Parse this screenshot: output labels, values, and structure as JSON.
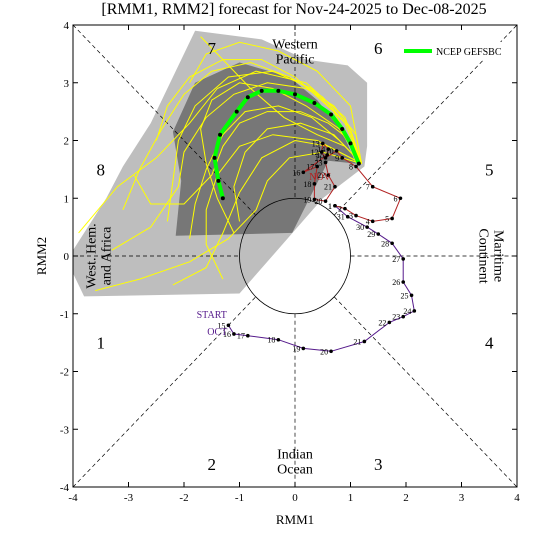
{
  "chart_data": {
    "type": "line",
    "title": "[RMM1, RMM2] forecast for Nov-24-2025 to Dec-08-2025",
    "xlabel": "RMM1",
    "ylabel": "RMM2",
    "xlim": [
      -4,
      4
    ],
    "ylim": [
      -4,
      4
    ],
    "x_ticks": [
      "-4",
      "-3",
      "-2",
      "-1",
      "0",
      "1",
      "2",
      "3",
      "4"
    ],
    "y_ticks": [
      "-4",
      "-3",
      "-2",
      "-1",
      "0",
      "1",
      "2",
      "3",
      "4"
    ],
    "grid": false,
    "legend": {
      "position": "top-right",
      "label": "NCEP GEFSBC",
      "color": "#00ff00"
    },
    "colors": {
      "oct_track": "#551a8b",
      "nov_track": "#b22222",
      "ensemble_members": "#ffff00",
      "ensemble_mean": "#00ff00",
      "spread_outer": "#bebebe",
      "spread_inner": "#777777",
      "points": "#000000"
    },
    "phase_numbers": [
      {
        "label": "1",
        "x": -3.5,
        "y": -1.5
      },
      {
        "label": "2",
        "x": -1.5,
        "y": -3.6
      },
      {
        "label": "3",
        "x": 1.5,
        "y": -3.6
      },
      {
        "label": "4",
        "x": 3.5,
        "y": -1.5
      },
      {
        "label": "5",
        "x": 3.5,
        "y": 1.5
      },
      {
        "label": "6",
        "x": 1.5,
        "y": 3.6
      },
      {
        "label": "7",
        "x": -1.5,
        "y": 3.6
      },
      {
        "label": "8",
        "x": -3.5,
        "y": 1.5
      }
    ],
    "regions": [
      {
        "lines": [
          "Western",
          "Pacific"
        ],
        "x": 0,
        "y": 3.55,
        "rotate": 0
      },
      {
        "lines": [
          "Indian",
          "Ocean"
        ],
        "x": 0,
        "y": -3.55,
        "rotate": 0
      },
      {
        "lines": [
          "West. Hem.",
          "and Africa"
        ],
        "x": -3.55,
        "y": 0,
        "rotate": -90
      },
      {
        "lines": [
          "Maritime",
          "Continent"
        ],
        "x": 3.55,
        "y": 0,
        "rotate": 90
      }
    ],
    "annotations": [
      {
        "text": "START",
        "x": -1.5,
        "y": -1.07,
        "color": "#551a8b"
      },
      {
        "text": "OCT",
        "x": -1.4,
        "y": -1.37,
        "color": "#551a8b"
      },
      {
        "text": "NOV",
        "x": 0.45,
        "y": 1.32,
        "color": "#b22222"
      }
    ],
    "oct_track": {
      "name": "OCT",
      "points": [
        {
          "label": "15",
          "x": -1.2,
          "y": -1.2
        },
        {
          "label": "16",
          "x": -1.1,
          "y": -1.35
        },
        {
          "label": "17",
          "x": -0.85,
          "y": -1.38
        },
        {
          "label": "18",
          "x": -0.3,
          "y": -1.45
        },
        {
          "label": "19",
          "x": 0.15,
          "y": -1.6
        },
        {
          "label": "20",
          "x": 0.65,
          "y": -1.65
        },
        {
          "label": "21",
          "x": 1.25,
          "y": -1.48
        },
        {
          "label": "22",
          "x": 1.7,
          "y": -1.15
        },
        {
          "label": "23",
          "x": 1.95,
          "y": -1.05
        },
        {
          "label": "24",
          "x": 2.15,
          "y": -0.95
        },
        {
          "label": "25",
          "x": 2.1,
          "y": -0.68
        },
        {
          "label": "26",
          "x": 1.95,
          "y": -0.45
        },
        {
          "label": "27",
          "x": 1.95,
          "y": -0.05
        },
        {
          "label": "28",
          "x": 1.75,
          "y": 0.22
        },
        {
          "label": "29",
          "x": 1.5,
          "y": 0.38
        },
        {
          "label": "30",
          "x": 1.3,
          "y": 0.5
        },
        {
          "label": "31",
          "x": 0.95,
          "y": 0.68
        },
        {
          "label": "1",
          "x": 0.72,
          "y": 0.87
        }
      ]
    },
    "nov_track": {
      "name": "NOV",
      "points": [
        {
          "label": "1",
          "x": 0.72,
          "y": 0.87
        },
        {
          "label": "2",
          "x": 0.9,
          "y": 0.82
        },
        {
          "label": "3",
          "x": 1.1,
          "y": 0.7
        },
        {
          "label": "4",
          "x": 1.4,
          "y": 0.6
        },
        {
          "label": "5",
          "x": 1.75,
          "y": 0.65
        },
        {
          "label": "6",
          "x": 1.9,
          "y": 1.0
        },
        {
          "label": "7",
          "x": 1.4,
          "y": 1.2
        },
        {
          "label": "8",
          "x": 1.1,
          "y": 1.55
        },
        {
          "label": "9",
          "x": 0.85,
          "y": 1.7
        },
        {
          "label": "10",
          "x": 0.75,
          "y": 1.82
        },
        {
          "label": "11",
          "x": 0.55,
          "y": 1.7
        },
        {
          "label": "12",
          "x": 0.48,
          "y": 1.8
        },
        {
          "label": "13",
          "x": 0.5,
          "y": 1.95
        },
        {
          "label": "14",
          "x": 0.6,
          "y": 1.85
        },
        {
          "label": "15",
          "x": 0.58,
          "y": 1.75
        },
        {
          "label": "16",
          "x": 0.15,
          "y": 1.45
        },
        {
          "label": "17",
          "x": 0.4,
          "y": 1.55
        },
        {
          "label": "18",
          "x": 0.35,
          "y": 1.25
        },
        {
          "label": "19",
          "x": 0.35,
          "y": 0.98
        },
        {
          "label": "20",
          "x": 0.55,
          "y": 0.95
        },
        {
          "label": "21",
          "x": 0.72,
          "y": 1.2
        },
        {
          "label": "22",
          "x": 0.6,
          "y": 1.4
        },
        {
          "label": "23",
          "x": 0.55,
          "y": 1.62
        }
      ]
    },
    "ensemble_mean": {
      "name": "NCEP GEFSBC",
      "points": [
        {
          "x": 1.15,
          "y": 1.6
        },
        {
          "x": 1.0,
          "y": 1.95
        },
        {
          "x": 0.85,
          "y": 2.2
        },
        {
          "x": 0.65,
          "y": 2.45
        },
        {
          "x": 0.35,
          "y": 2.65
        },
        {
          "x": 0.0,
          "y": 2.8
        },
        {
          "x": -0.3,
          "y": 2.86
        },
        {
          "x": -0.6,
          "y": 2.86
        },
        {
          "x": -0.85,
          "y": 2.75
        },
        {
          "x": -1.05,
          "y": 2.5
        },
        {
          "x": -1.35,
          "y": 2.1
        },
        {
          "x": -1.45,
          "y": 1.7
        },
        {
          "x": -1.38,
          "y": 1.3
        },
        {
          "x": -1.3,
          "y": 1.0
        }
      ]
    },
    "spread_outer_polygon": [
      {
        "x": -4.0,
        "y": 0.1
      },
      {
        "x": -3.4,
        "y": 1.0
      },
      {
        "x": -3.1,
        "y": 1.55
      },
      {
        "x": -2.6,
        "y": 2.3
      },
      {
        "x": -2.2,
        "y": 3.1
      },
      {
        "x": -1.8,
        "y": 3.9
      },
      {
        "x": -0.6,
        "y": 3.75
      },
      {
        "x": 0.2,
        "y": 3.4
      },
      {
        "x": 0.95,
        "y": 3.3
      },
      {
        "x": 1.3,
        "y": 3.0
      },
      {
        "x": 1.3,
        "y": 2.5
      },
      {
        "x": 1.3,
        "y": 1.9
      },
      {
        "x": 1.25,
        "y": 1.55
      },
      {
        "x": 0.5,
        "y": 1.0
      },
      {
        "x": -1.0,
        "y": -0.65
      },
      {
        "x": -3.8,
        "y": -0.7
      },
      {
        "x": -4.0,
        "y": -0.3
      }
    ],
    "spread_inner_polygon": [
      {
        "x": -2.2,
        "y": 2.15
      },
      {
        "x": -1.8,
        "y": 3.0
      },
      {
        "x": -1.0,
        "y": 3.35
      },
      {
        "x": -0.1,
        "y": 3.1
      },
      {
        "x": 0.4,
        "y": 2.7
      },
      {
        "x": 0.85,
        "y": 2.15
      },
      {
        "x": 1.1,
        "y": 1.6
      },
      {
        "x": 0.6,
        "y": 1.65
      },
      {
        "x": -0.05,
        "y": 0.4
      },
      {
        "x": -2.15,
        "y": 0.35
      },
      {
        "x": -2.05,
        "y": 1.3
      }
    ],
    "ensemble_members": [
      {
        "points": [
          {
            "x": 1.2,
            "y": 1.6
          },
          {
            "x": 0.9,
            "y": 2.3
          },
          {
            "x": 0.3,
            "y": 2.9
          },
          {
            "x": -0.4,
            "y": 3.2
          },
          {
            "x": -1.2,
            "y": 3.1
          },
          {
            "x": -1.8,
            "y": 2.6
          },
          {
            "x": -2.1,
            "y": 2.0
          },
          {
            "x": -2.2,
            "y": 1.3
          },
          {
            "x": -2.3,
            "y": 0.6
          }
        ]
      },
      {
        "points": [
          {
            "x": 1.2,
            "y": 1.6
          },
          {
            "x": 1.0,
            "y": 2.2
          },
          {
            "x": 0.5,
            "y": 2.75
          },
          {
            "x": -0.1,
            "y": 3.1
          },
          {
            "x": -0.8,
            "y": 3.35
          },
          {
            "x": -1.5,
            "y": 3.2
          },
          {
            "x": -2.0,
            "y": 2.8
          },
          {
            "x": -2.4,
            "y": 2.2
          },
          {
            "x": -2.8,
            "y": 1.5
          },
          {
            "x": -3.1,
            "y": 0.8
          }
        ]
      },
      {
        "points": [
          {
            "x": 1.2,
            "y": 1.6
          },
          {
            "x": 0.8,
            "y": 2.0
          },
          {
            "x": 0.3,
            "y": 2.4
          },
          {
            "x": -0.3,
            "y": 2.6
          },
          {
            "x": -0.9,
            "y": 2.5
          },
          {
            "x": -1.3,
            "y": 2.1
          },
          {
            "x": -1.6,
            "y": 1.5
          },
          {
            "x": -1.8,
            "y": 0.9
          },
          {
            "x": -1.9,
            "y": 0.3
          }
        ]
      },
      {
        "points": [
          {
            "x": 1.2,
            "y": 1.6
          },
          {
            "x": 1.0,
            "y": 2.6
          },
          {
            "x": 0.4,
            "y": 3.2
          },
          {
            "x": -0.3,
            "y": 3.55
          },
          {
            "x": -1.0,
            "y": 3.7
          },
          {
            "x": -1.6,
            "y": 3.5
          },
          {
            "x": -1.9,
            "y": 3.0
          }
        ]
      },
      {
        "points": [
          {
            "x": 1.2,
            "y": 1.6
          },
          {
            "x": 0.7,
            "y": 2.1
          },
          {
            "x": 0.1,
            "y": 2.3
          },
          {
            "x": -0.5,
            "y": 2.2
          },
          {
            "x": -0.9,
            "y": 1.8
          },
          {
            "x": -1.1,
            "y": 1.2
          },
          {
            "x": -1.0,
            "y": 0.6
          }
        ]
      },
      {
        "points": [
          {
            "x": 1.2,
            "y": 1.6
          },
          {
            "x": 0.9,
            "y": 2.4
          },
          {
            "x": 0.2,
            "y": 3.0
          },
          {
            "x": -0.7,
            "y": 3.2
          },
          {
            "x": -1.4,
            "y": 2.9
          },
          {
            "x": -1.9,
            "y": 2.3
          },
          {
            "x": -2.5,
            "y": 1.7
          },
          {
            "x": -3.2,
            "y": 1.2
          },
          {
            "x": -3.9,
            "y": 0.4
          }
        ]
      },
      {
        "points": [
          {
            "x": 1.2,
            "y": 1.6
          },
          {
            "x": 0.6,
            "y": 1.9
          },
          {
            "x": 0.0,
            "y": 2.0
          },
          {
            "x": -0.6,
            "y": 1.7
          },
          {
            "x": -1.0,
            "y": 1.1
          },
          {
            "x": -1.3,
            "y": 0.4
          },
          {
            "x": -1.6,
            "y": -0.2
          },
          {
            "x": -2.2,
            "y": -0.5
          }
        ]
      },
      {
        "points": [
          {
            "x": 1.2,
            "y": 1.6
          },
          {
            "x": 1.1,
            "y": 2.1
          },
          {
            "x": 0.7,
            "y": 2.6
          },
          {
            "x": 0.2,
            "y": 2.9
          },
          {
            "x": -0.5,
            "y": 3.0
          },
          {
            "x": -1.1,
            "y": 2.8
          },
          {
            "x": -1.6,
            "y": 2.4
          },
          {
            "x": -2.0,
            "y": 1.8
          },
          {
            "x": -2.1,
            "y": 1.2
          },
          {
            "x": -2.6,
            "y": 0.5
          },
          {
            "x": -3.3,
            "y": 0.1
          }
        ]
      },
      {
        "points": [
          {
            "x": 1.2,
            "y": 1.6
          },
          {
            "x": 0.8,
            "y": 2.2
          },
          {
            "x": 0.2,
            "y": 2.6
          },
          {
            "x": -0.4,
            "y": 2.9
          },
          {
            "x": -1.0,
            "y": 3.0
          },
          {
            "x": -1.5,
            "y": 2.7
          },
          {
            "x": -1.7,
            "y": 2.2
          },
          {
            "x": -1.6,
            "y": 1.6
          },
          {
            "x": -1.4,
            "y": 1.0
          },
          {
            "x": -1.1,
            "y": 0.4
          }
        ]
      },
      {
        "points": [
          {
            "x": 1.2,
            "y": 1.6
          },
          {
            "x": 0.9,
            "y": 1.9
          },
          {
            "x": 0.4,
            "y": 2.1
          },
          {
            "x": -0.2,
            "y": 2.4
          },
          {
            "x": -0.8,
            "y": 2.9
          },
          {
            "x": -1.3,
            "y": 3.4
          },
          {
            "x": -1.7,
            "y": 3.8
          }
        ]
      },
      {
        "points": [
          {
            "x": 1.2,
            "y": 1.6
          },
          {
            "x": 0.5,
            "y": 1.8
          },
          {
            "x": -0.1,
            "y": 1.7
          },
          {
            "x": -0.5,
            "y": 1.3
          },
          {
            "x": -0.7,
            "y": 0.8
          },
          {
            "x": -1.2,
            "y": 0.3
          },
          {
            "x": -1.9,
            "y": -0.1
          },
          {
            "x": -2.8,
            "y": -0.4
          },
          {
            "x": -3.6,
            "y": -0.6
          }
        ]
      },
      {
        "points": [
          {
            "x": 1.2,
            "y": 1.6
          },
          {
            "x": 1.0,
            "y": 2.0
          },
          {
            "x": 0.6,
            "y": 2.3
          },
          {
            "x": 0.1,
            "y": 2.5
          },
          {
            "x": -0.5,
            "y": 2.5
          },
          {
            "x": -1.0,
            "y": 2.3
          },
          {
            "x": -1.3,
            "y": 1.9
          },
          {
            "x": -1.5,
            "y": 1.4
          },
          {
            "x": -2.0,
            "y": 0.9
          },
          {
            "x": -2.6,
            "y": 0.9
          },
          {
            "x": -2.9,
            "y": 1.4
          }
        ]
      },
      {
        "points": [
          {
            "x": 1.2,
            "y": 1.6
          },
          {
            "x": 0.7,
            "y": 2.5
          },
          {
            "x": 0.0,
            "y": 3.1
          },
          {
            "x": -0.6,
            "y": 3.4
          },
          {
            "x": -1.3,
            "y": 3.4
          },
          {
            "x": -1.9,
            "y": 3.1
          },
          {
            "x": -2.3,
            "y": 2.6
          },
          {
            "x": -2.5,
            "y": 2.0
          }
        ]
      },
      {
        "points": [
          {
            "x": 1.2,
            "y": 1.6
          },
          {
            "x": 0.4,
            "y": 2.0
          },
          {
            "x": -0.4,
            "y": 2.1
          },
          {
            "x": -1.0,
            "y": 1.9
          },
          {
            "x": -1.4,
            "y": 1.4
          },
          {
            "x": -1.6,
            "y": 0.8
          },
          {
            "x": -1.6,
            "y": 0.2
          },
          {
            "x": -1.3,
            "y": -0.4
          }
        ]
      }
    ]
  }
}
